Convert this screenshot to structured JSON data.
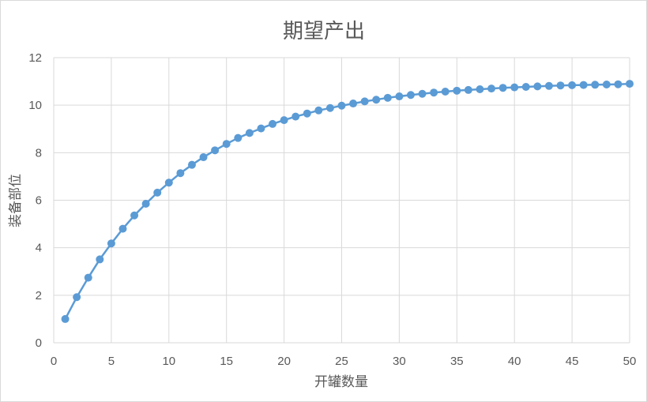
{
  "chart_data": {
    "type": "line",
    "title": "期望产出",
    "xlabel": "开罐数量",
    "ylabel": "装备部位",
    "xlim": [
      0,
      50
    ],
    "ylim": [
      0,
      12
    ],
    "x_ticks": [
      "0",
      "5",
      "10",
      "15",
      "20",
      "25",
      "30",
      "35",
      "40",
      "45",
      "50"
    ],
    "y_ticks": [
      "0",
      "2",
      "4",
      "6",
      "8",
      "10",
      "12"
    ],
    "grid": true,
    "legend": "none",
    "series": [
      {
        "color": "#5b9bd5",
        "marker": "circle",
        "x": [
          1,
          2,
          3,
          4,
          5,
          6,
          7,
          8,
          9,
          10,
          11,
          12,
          13,
          14,
          15,
          16,
          17,
          18,
          19,
          20,
          21,
          22,
          23,
          24,
          25,
          26,
          27,
          28,
          29,
          30,
          31,
          32,
          33,
          34,
          35,
          36,
          37,
          38,
          39,
          40,
          41,
          42,
          43,
          44,
          45,
          46,
          47,
          48,
          49,
          50
        ],
        "values": [
          1.0,
          1.92,
          2.74,
          3.51,
          4.18,
          4.8,
          5.36,
          5.85,
          6.32,
          6.74,
          7.14,
          7.49,
          7.81,
          8.1,
          8.37,
          8.62,
          8.83,
          9.02,
          9.21,
          9.37,
          9.52,
          9.65,
          9.78,
          9.88,
          9.98,
          10.07,
          10.16,
          10.23,
          10.31,
          10.37,
          10.43,
          10.48,
          10.53,
          10.57,
          10.61,
          10.64,
          10.67,
          10.7,
          10.73,
          10.75,
          10.77,
          10.79,
          10.81,
          10.83,
          10.84,
          10.85,
          10.86,
          10.87,
          10.88,
          10.9
        ]
      }
    ]
  }
}
